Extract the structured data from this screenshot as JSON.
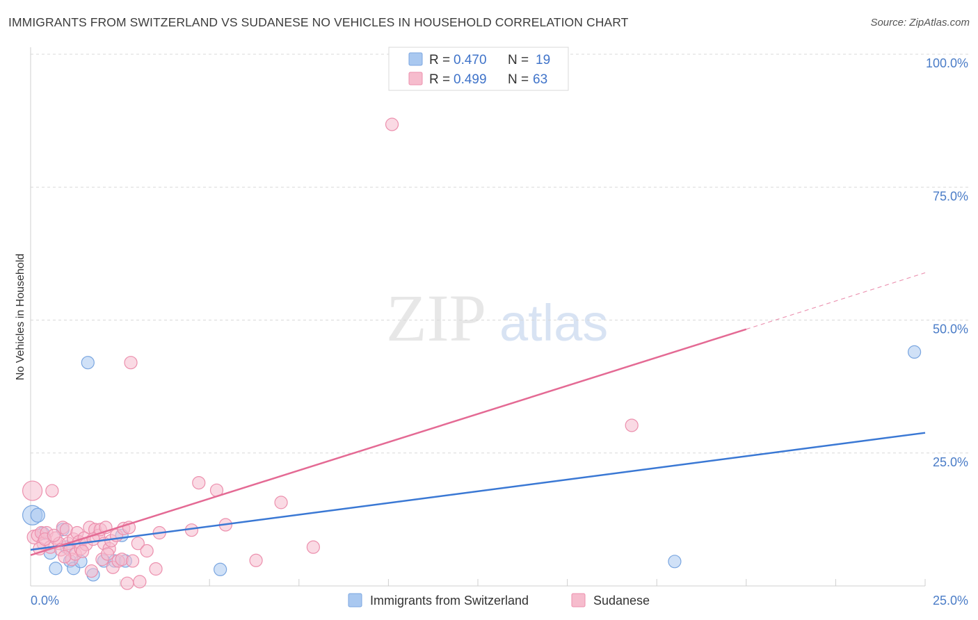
{
  "title": "IMMIGRANTS FROM SWITZERLAND VS SUDANESE NO VEHICLES IN HOUSEHOLD CORRELATION CHART",
  "source": "Source: ZipAtlas.com",
  "watermark": {
    "zip": "ZIP",
    "atlas": "atlas"
  },
  "colors": {
    "blue_fill": "#a9c8f0",
    "blue_stroke": "#7aa6e0",
    "blue_line": "#3a78d4",
    "pink_fill": "#f6bccd",
    "pink_stroke": "#ec8fad",
    "pink_line": "#e46a94",
    "tick_text": "#4a7cc7",
    "grid": "#d9d9d9"
  },
  "legend": {
    "rows": [
      {
        "r_label": "R =",
        "r_value": "0.470",
        "n_label": "N =",
        "n_value": "19"
      },
      {
        "r_label": "R =",
        "r_value": "0.499",
        "n_label": "N =",
        "n_value": "63"
      }
    ]
  },
  "chart_data": {
    "type": "scatter",
    "title": "IMMIGRANTS FROM SWITZERLAND VS SUDANESE NO VEHICLES IN HOUSEHOLD CORRELATION CHART",
    "xlabel": "",
    "ylabel": "No Vehicles in Household",
    "xlim": [
      0,
      25
    ],
    "ylim": [
      0,
      100
    ],
    "x_tick_labels": [
      "0.0%",
      "25.0%"
    ],
    "y_ticks": [
      25,
      50,
      75,
      100
    ],
    "y_tick_labels": [
      "25.0%",
      "50.0%",
      "75.0%",
      "100.0%"
    ],
    "series": [
      {
        "name": "Immigrants from Switzerland",
        "color": "blue",
        "regression": {
          "x0": 0,
          "y0": 6.8,
          "x1": 25,
          "y1": 28.8,
          "dash_from": null
        },
        "points": [
          {
            "x": 0.05,
            "y": 13.3,
            "s": 14
          },
          {
            "x": 0.2,
            "y": 13.3,
            "s": 10
          },
          {
            "x": 0.55,
            "y": 6.2,
            "s": 9
          },
          {
            "x": 0.7,
            "y": 3.3,
            "s": 9
          },
          {
            "x": 0.9,
            "y": 10.6,
            "s": 9
          },
          {
            "x": 1.1,
            "y": 4.7,
            "s": 9
          },
          {
            "x": 1.2,
            "y": 3.3,
            "s": 9
          },
          {
            "x": 1.4,
            "y": 4.6,
            "s": 9
          },
          {
            "x": 1.6,
            "y": 42.0,
            "s": 9
          },
          {
            "x": 1.75,
            "y": 2.1,
            "s": 9
          },
          {
            "x": 2.05,
            "y": 4.7,
            "s": 9
          },
          {
            "x": 2.35,
            "y": 4.7,
            "s": 9
          },
          {
            "x": 2.55,
            "y": 9.5,
            "s": 9
          },
          {
            "x": 2.65,
            "y": 4.7,
            "s": 9
          },
          {
            "x": 5.3,
            "y": 3.1,
            "s": 9
          },
          {
            "x": 18.0,
            "y": 4.6,
            "s": 9
          },
          {
            "x": 24.7,
            "y": 44.0,
            "s": 9
          },
          {
            "x": 0.35,
            "y": 9.9,
            "s": 9
          },
          {
            "x": 1.0,
            "y": 7.3,
            "s": 9
          }
        ]
      },
      {
        "name": "Sudanese",
        "color": "pink",
        "regression": {
          "x0": 0,
          "y0": 5.8,
          "x1": 25,
          "y1": 58.9,
          "solid_until": 20.0
        },
        "points": [
          {
            "x": 0.05,
            "y": 17.9,
            "s": 14
          },
          {
            "x": 0.1,
            "y": 9.2,
            "s": 10
          },
          {
            "x": 0.2,
            "y": 9.5,
            "s": 9
          },
          {
            "x": 0.3,
            "y": 10.0,
            "s": 9
          },
          {
            "x": 0.35,
            "y": 8.0,
            "s": 9
          },
          {
            "x": 0.45,
            "y": 10.0,
            "s": 9
          },
          {
            "x": 0.55,
            "y": 7.3,
            "s": 9
          },
          {
            "x": 0.6,
            "y": 17.9,
            "s": 9
          },
          {
            "x": 0.7,
            "y": 9.0,
            "s": 9
          },
          {
            "x": 0.8,
            "y": 8.0,
            "s": 9
          },
          {
            "x": 0.85,
            "y": 6.8,
            "s": 9
          },
          {
            "x": 0.9,
            "y": 11.0,
            "s": 9
          },
          {
            "x": 1.0,
            "y": 10.6,
            "s": 9
          },
          {
            "x": 1.05,
            "y": 8.0,
            "s": 9
          },
          {
            "x": 1.1,
            "y": 6.8,
            "s": 9
          },
          {
            "x": 1.15,
            "y": 5.0,
            "s": 9
          },
          {
            "x": 1.2,
            "y": 8.8,
            "s": 9
          },
          {
            "x": 1.25,
            "y": 6.0,
            "s": 9
          },
          {
            "x": 1.3,
            "y": 10.0,
            "s": 9
          },
          {
            "x": 1.35,
            "y": 8.3,
            "s": 9
          },
          {
            "x": 1.4,
            "y": 7.0,
            "s": 9
          },
          {
            "x": 1.5,
            "y": 9.0,
            "s": 9
          },
          {
            "x": 1.55,
            "y": 7.8,
            "s": 9
          },
          {
            "x": 1.65,
            "y": 11.0,
            "s": 9
          },
          {
            "x": 1.7,
            "y": 2.8,
            "s": 9
          },
          {
            "x": 1.8,
            "y": 10.6,
            "s": 9
          },
          {
            "x": 1.9,
            "y": 9.5,
            "s": 9
          },
          {
            "x": 1.95,
            "y": 10.6,
            "s": 9
          },
          {
            "x": 2.0,
            "y": 5.0,
            "s": 9
          },
          {
            "x": 2.05,
            "y": 8.0,
            "s": 9
          },
          {
            "x": 2.1,
            "y": 11.0,
            "s": 9
          },
          {
            "x": 2.2,
            "y": 7.0,
            "s": 9
          },
          {
            "x": 2.25,
            "y": 8.5,
            "s": 9
          },
          {
            "x": 2.3,
            "y": 3.5,
            "s": 9
          },
          {
            "x": 2.4,
            "y": 9.5,
            "s": 9
          },
          {
            "x": 2.45,
            "y": 4.7,
            "s": 9
          },
          {
            "x": 2.55,
            "y": 5.0,
            "s": 9
          },
          {
            "x": 2.6,
            "y": 10.8,
            "s": 9
          },
          {
            "x": 2.7,
            "y": 0.5,
            "s": 9
          },
          {
            "x": 2.8,
            "y": 42.0,
            "s": 9
          },
          {
            "x": 2.85,
            "y": 4.7,
            "s": 9
          },
          {
            "x": 3.0,
            "y": 8.0,
            "s": 9
          },
          {
            "x": 3.05,
            "y": 0.8,
            "s": 9
          },
          {
            "x": 3.25,
            "y": 6.6,
            "s": 9
          },
          {
            "x": 3.5,
            "y": 3.2,
            "s": 9
          },
          {
            "x": 3.6,
            "y": 10.0,
            "s": 9
          },
          {
            "x": 4.5,
            "y": 10.5,
            "s": 9
          },
          {
            "x": 4.7,
            "y": 19.4,
            "s": 9
          },
          {
            "x": 5.2,
            "y": 18.0,
            "s": 9
          },
          {
            "x": 5.45,
            "y": 11.5,
            "s": 9
          },
          {
            "x": 6.3,
            "y": 4.8,
            "s": 9
          },
          {
            "x": 7.0,
            "y": 15.7,
            "s": 9
          },
          {
            "x": 7.9,
            "y": 7.3,
            "s": 9
          },
          {
            "x": 10.1,
            "y": 86.8,
            "s": 9
          },
          {
            "x": 16.8,
            "y": 30.2,
            "s": 9
          },
          {
            "x": 0.25,
            "y": 7.0,
            "s": 9
          },
          {
            "x": 0.4,
            "y": 8.8,
            "s": 9
          },
          {
            "x": 0.65,
            "y": 9.5,
            "s": 9
          },
          {
            "x": 0.95,
            "y": 5.5,
            "s": 9
          },
          {
            "x": 1.45,
            "y": 6.5,
            "s": 9
          },
          {
            "x": 1.75,
            "y": 8.8,
            "s": 9
          },
          {
            "x": 2.15,
            "y": 6.0,
            "s": 9
          },
          {
            "x": 2.75,
            "y": 11.0,
            "s": 9
          }
        ]
      }
    ],
    "legend_position": "bottom"
  }
}
